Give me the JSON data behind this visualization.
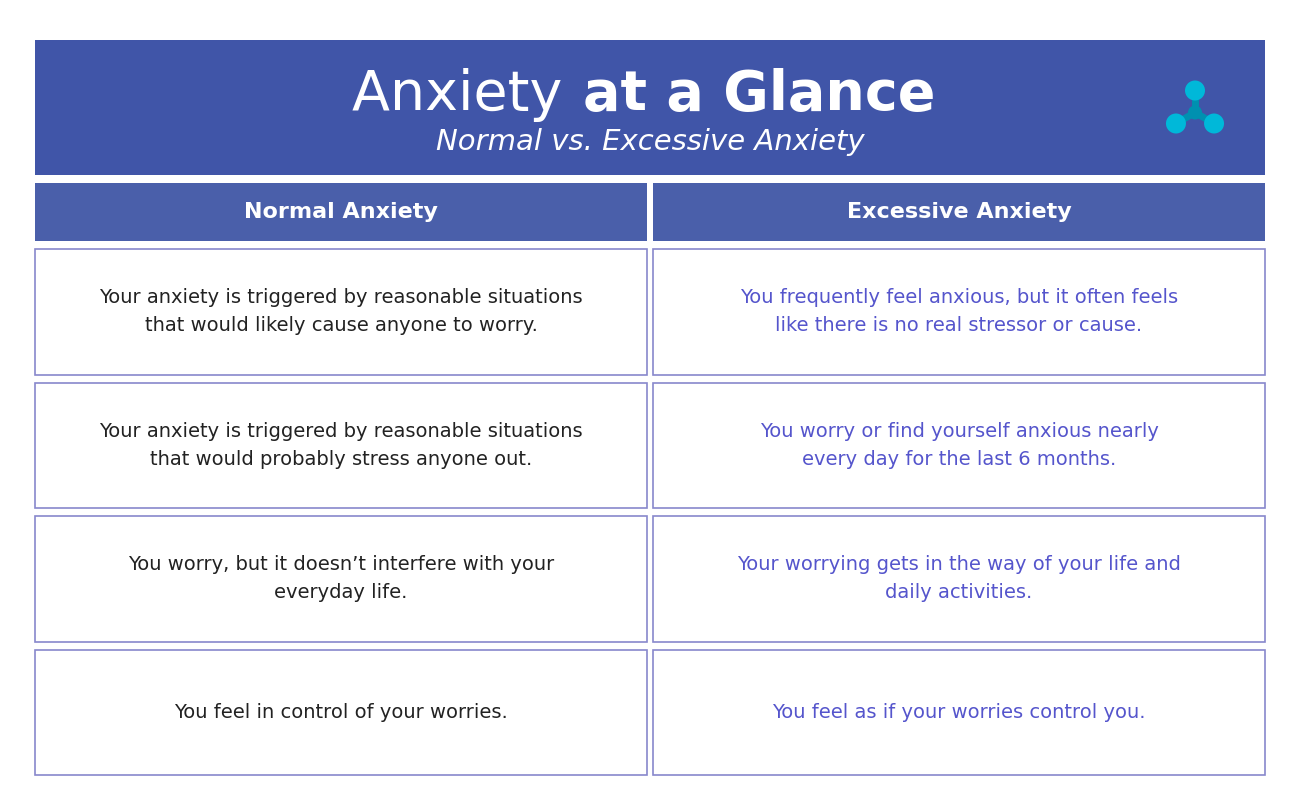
{
  "title_light": "Anxiety ",
  "title_bold": "at a Glance",
  "subtitle": "Normal vs. Excessive Anxiety",
  "header_bg": "#4055a8",
  "header_text_color": "#ffffff",
  "col_header_bg": "#4a5faa",
  "col1_header": "Normal Anxiety",
  "col2_header": "Excessive Anxiety",
  "cell_border_color": "#8888cc",
  "cell_bg": "#ffffff",
  "normal_text_color": "#222222",
  "excessive_text_color": "#5555cc",
  "rows": [
    {
      "normal": "Your anxiety is triggered by reasonable situations\nthat would likely cause anyone to worry.",
      "excessive": "You frequently feel anxious, but it often feels\nlike there is no real stressor or cause."
    },
    {
      "normal": "Your anxiety is triggered by reasonable situations\nthat would probably stress anyone out.",
      "excessive": "You worry or find yourself anxious nearly\nevery day for the last 6 months."
    },
    {
      "normal": "You worry, but it doesn’t interfere with your\neveryday life.",
      "excessive": "Your worrying gets in the way of your life and\ndaily activities."
    },
    {
      "normal": "You feel in control of your worries.",
      "excessive": "You feel as if your worries control you."
    }
  ],
  "bg_color": "#ffffff",
  "outer_bg": "#f5f5f5",
  "font_size_title": 40,
  "font_size_subtitle": 21,
  "font_size_header": 16,
  "font_size_cell": 14,
  "logo_color1": "#00b8d9",
  "logo_color2": "#0090b0"
}
